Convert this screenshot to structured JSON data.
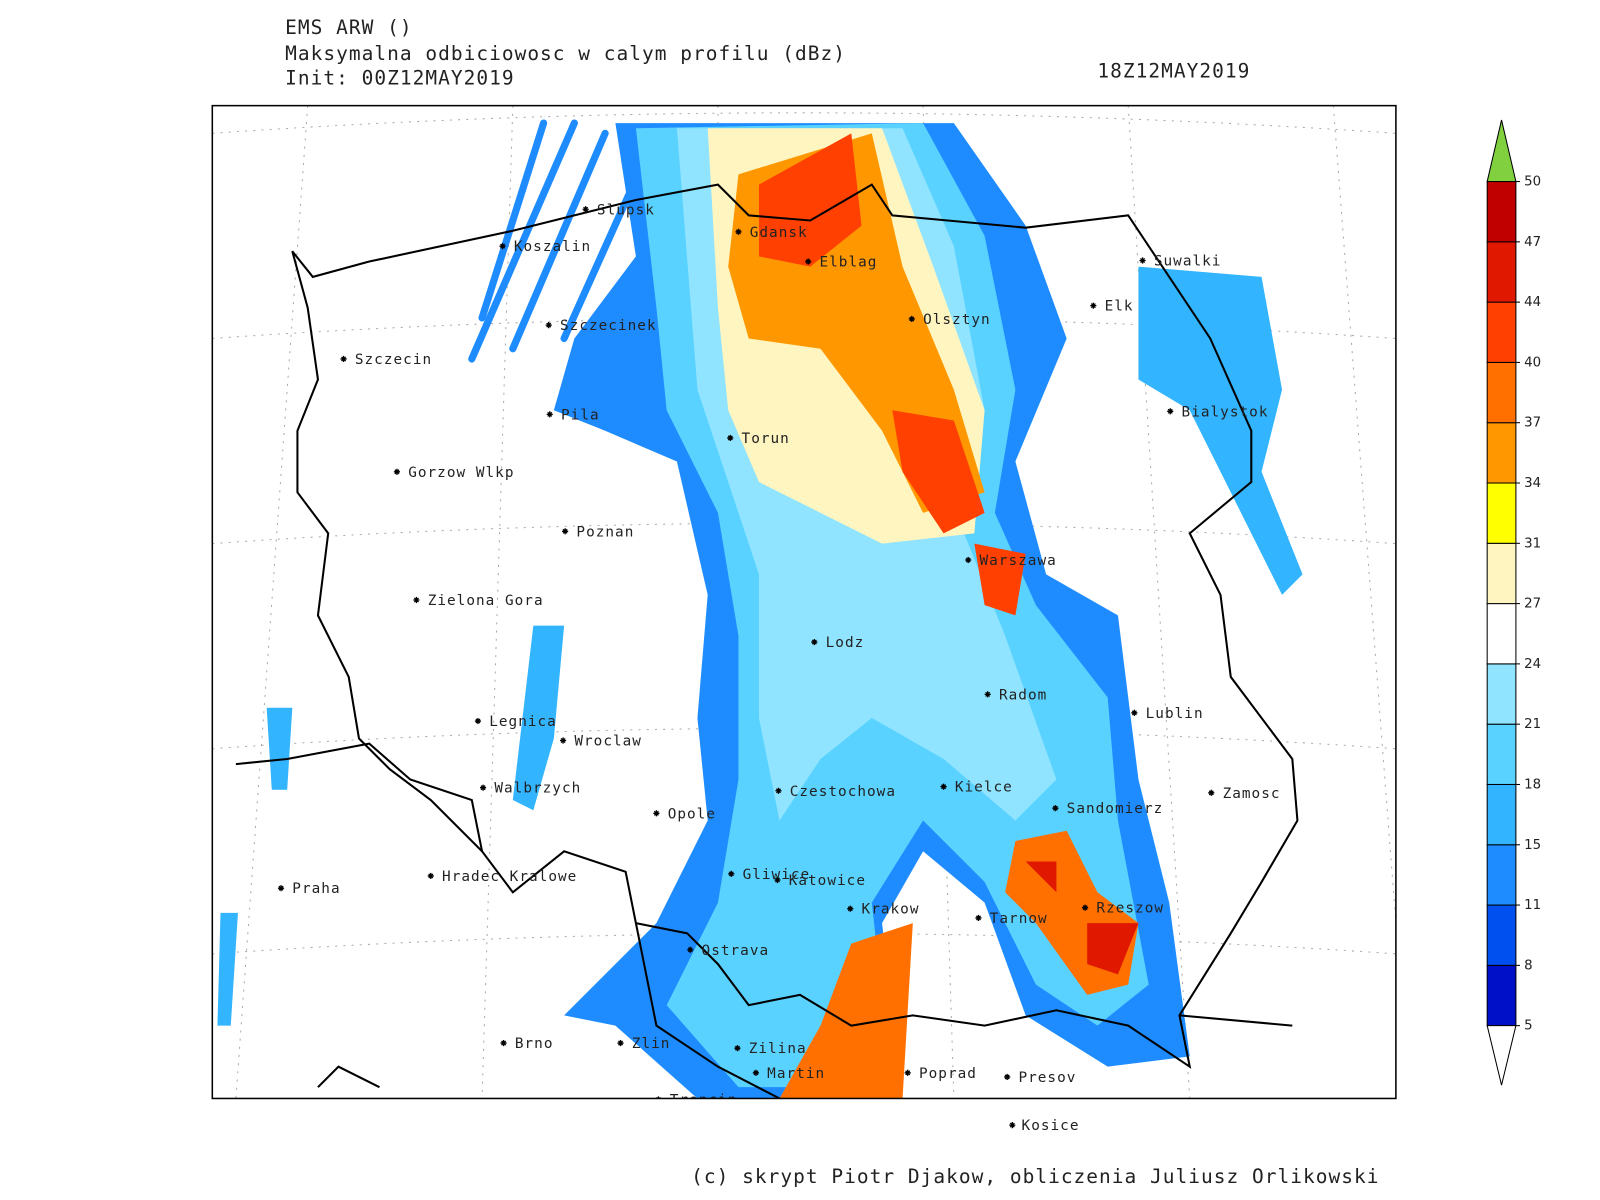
{
  "header": {
    "model": "EMS ARW ()",
    "title": "Maksymalna odbiciowosc w calym profilu (dBz)",
    "init": "Init: 00Z12MAY2019",
    "valid": "18Z12MAY2019"
  },
  "map": {
    "cities": [
      "Slupsk",
      "Koszalin",
      "Gdansk",
      "Elblag",
      "Suwalki",
      "Szczecinek",
      "Olsztyn",
      "Elk",
      "Szczecin",
      "Bialystok",
      "Pila",
      "Torun",
      "Gorzow Wlkp",
      "Poznan",
      "Warszawa",
      "Zielona Gora",
      "Lodz",
      "Radom",
      "Lublin",
      "Legnica",
      "Wroclaw",
      "Walbrzych",
      "Czestochowa",
      "Kielce",
      "Zamosc",
      "Opole",
      "Sandomierz",
      "Praha",
      "Hradec Kralowe",
      "Gliwice",
      "Katowice",
      "Krakow",
      "Tarnow",
      "Rzeszow",
      "Ostrava",
      "Brno",
      "Zlin",
      "Zilina",
      "Martin",
      "Poprad",
      "Presov",
      "Trencin",
      "Kosice"
    ]
  },
  "colorbar": {
    "ticks": [
      5,
      8,
      11,
      15,
      18,
      21,
      24,
      27,
      31,
      34,
      37,
      40,
      44,
      47,
      50
    ],
    "colors": [
      "#0010c8",
      "#0050f0",
      "#1e8cff",
      "#32b4ff",
      "#5ad2ff",
      "#90e4ff",
      "#ffffff",
      "#fff5c0",
      "#ffff00",
      "#ff9800",
      "#ff7000",
      "#ff4000",
      "#e01800",
      "#c00000"
    ],
    "over_color": "#80d040",
    "under_color": "#ffffff"
  },
  "footer": {
    "credit": "(c) skrypt Piotr Djakow, obliczenia Juliusz Orlikowski"
  }
}
